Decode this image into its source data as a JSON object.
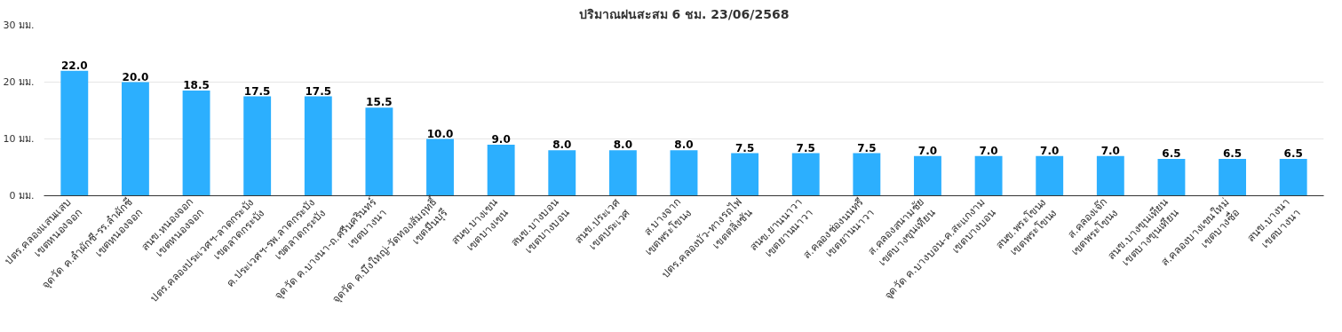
{
  "chart_data": {
    "type": "bar",
    "title": "ปริมาณฝนสะสม 6 ชม. 23/06/2568",
    "categories": [
      "ปตร.คลองแสนแสบ\nเขตหนองจอก",
      "จุดวัด ค.ลำผักชี-รร.ลำผักชี\nเขตหนองจอก",
      "สนข.หนองจอก\nเขตหนองจอก",
      "ปตร.คลองประเวศฯ-ลาดกระบัง\nเขตลาดกระบัง",
      "ค.ประเวศฯ-รพ.ลาดกระบัง\nเขตลาดกระบัง",
      "จุดวัด ค.บางนา-ถ.ศรีนครินทร์\nเขตบางนา",
      "จุดวัด ค.บึงใหญ่-วัดทองสัมฤทธิ์\nเขตมีนบุรี",
      "สนข.บางเขน\nเขตบางเขน",
      "สนข.บางบอน\nเขตบางบอน",
      "สนข.ประเวศ\nเขตประเวศ",
      "ส.บางจาก\nเขตพระโขนง",
      "ปตร.คลองบัว-ทางรถไฟ\nเขตตลิ่งชัน",
      "สนข.ยานนาวา\nเขตยานนาวา",
      "ส.คลองช่องนนทรี\nเขตยานนาวา",
      "ส.คลองสนามชัย\nเขตบางขุนเทียน",
      "จุดวัด ค.บางบอน-ค.สะแกงาม\nเขตบางบอน",
      "สนข.พระโขนง\nเขตพระโขนง",
      "ส.คลองเจ๊ก\nเขตพระโขนง",
      "สนข.บางขุนเทียน\nเขตบางขุนเทียน",
      "ส.คลองบางเขนใหม่\nเขตบางซื่อ",
      "สนข.บางนา\nเขตบางนา"
    ],
    "values": [
      22.0,
      20.0,
      18.5,
      17.5,
      17.5,
      15.5,
      10.0,
      9.0,
      8.0,
      8.0,
      8.0,
      7.5,
      7.5,
      7.5,
      7.0,
      7.0,
      7.0,
      7.0,
      6.5,
      6.5,
      6.5
    ],
    "color": "#2caffe",
    "ylim": [
      0,
      30
    ],
    "yticks": [
      {
        "value": 0,
        "label": "0 มม."
      },
      {
        "value": 10,
        "label": "10 มม."
      },
      {
        "value": 20,
        "label": "20 มม."
      },
      {
        "value": 30,
        "label": "30 มม."
      }
    ],
    "value_labels": [
      "22.0",
      "20.0",
      "18.5",
      "17.5",
      "17.5",
      "15.5",
      "10.0",
      "9.0",
      "8.0",
      "8.0",
      "8.0",
      "7.5",
      "7.5",
      "7.5",
      "7.0",
      "7.0",
      "7.0",
      "7.0",
      "6.5",
      "6.5",
      "6.5"
    ],
    "grid": "y"
  }
}
